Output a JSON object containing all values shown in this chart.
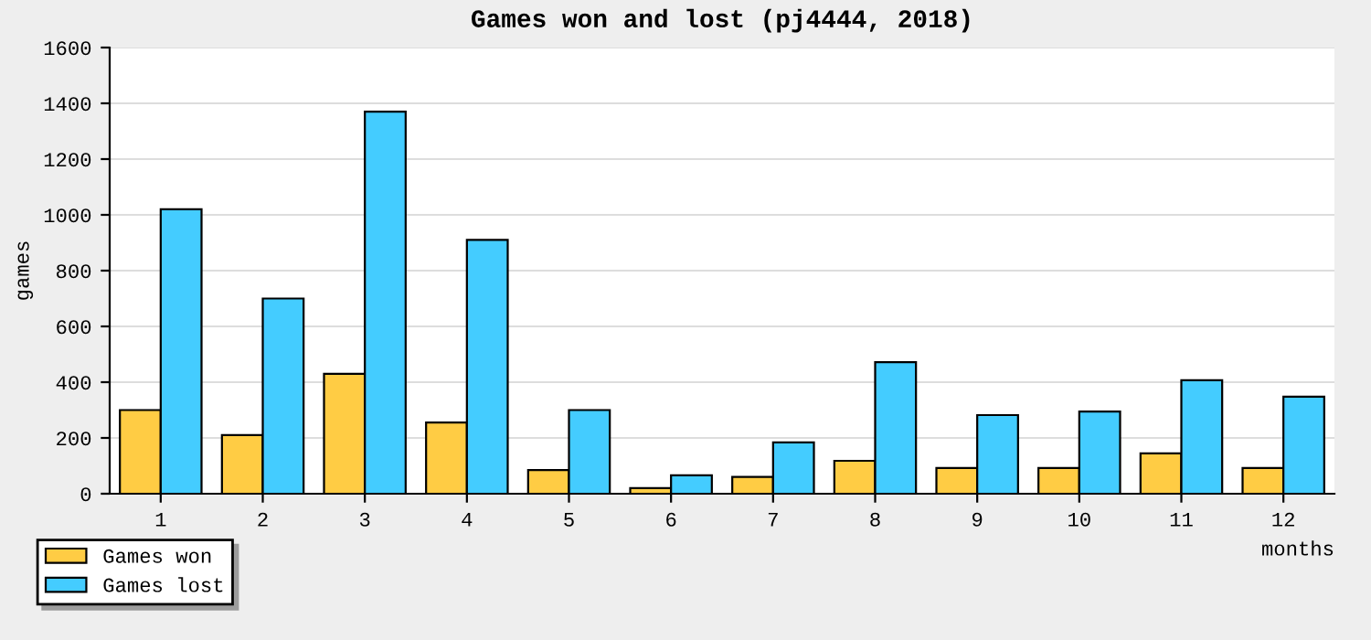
{
  "chart_data": {
    "type": "bar",
    "title": "Games won and lost (pj4444, 2018)",
    "xlabel": "months",
    "ylabel": "games",
    "categories": [
      "1",
      "2",
      "3",
      "4",
      "5",
      "6",
      "7",
      "8",
      "9",
      "10",
      "11",
      "12"
    ],
    "series": [
      {
        "name": "Games won",
        "color": "#ffcc44",
        "values": [
          300,
          210,
          430,
          255,
          85,
          20,
          60,
          118,
          92,
          92,
          145,
          92
        ]
      },
      {
        "name": "Games lost",
        "color": "#44ccff",
        "values": [
          1020,
          700,
          1370,
          910,
          300,
          66,
          184,
          472,
          282,
          295,
          407,
          348
        ]
      }
    ],
    "ylim": [
      0,
      1600
    ],
    "yticks": [
      0,
      200,
      400,
      600,
      800,
      1000,
      1200,
      1400,
      1600
    ],
    "grid": "y",
    "legend": "bottom left"
  }
}
